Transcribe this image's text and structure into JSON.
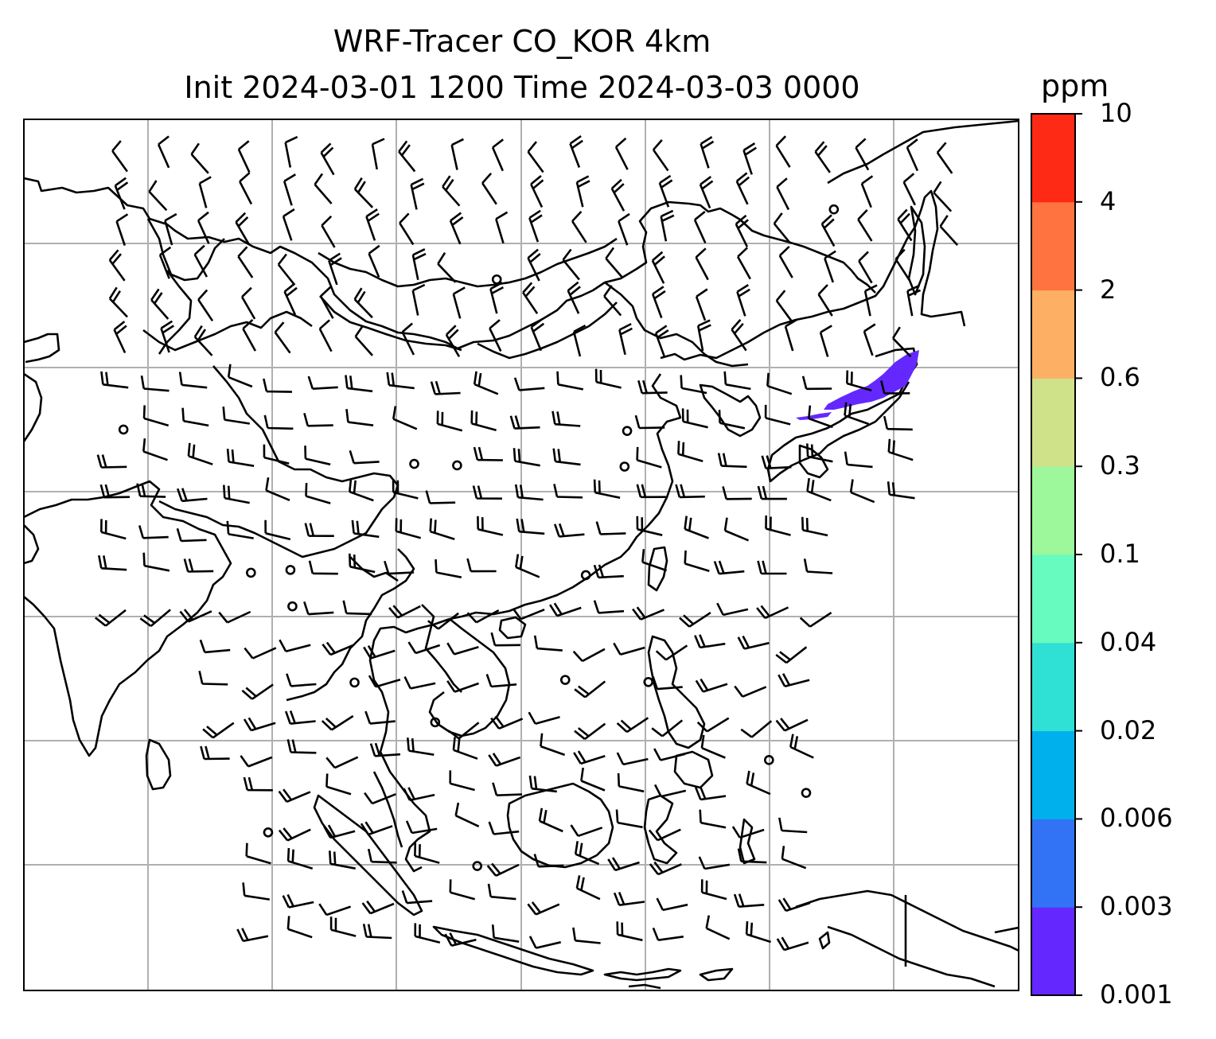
{
  "title": {
    "line1": "WRF-Tracer CO_KOR 4km",
    "line2": "Init 2024-03-01 1200 Time 2024-03-03 0000"
  },
  "colorbar": {
    "units": "ppm",
    "levels": [
      "0.001",
      "0.003",
      "0.006",
      "0.02",
      "0.04",
      "0.1",
      "0.3",
      "0.6",
      "2",
      "4",
      "10"
    ],
    "colors": [
      "#6428ff",
      "#3273f5",
      "#00b0ec",
      "#2fe0d4",
      "#67fbbf",
      "#9cf89a",
      "#cfe28a",
      "#fdb064",
      "#ff7340",
      "#ff2a15"
    ]
  },
  "map": {
    "frame_color": "#000000",
    "grid_color": "#b0b0b0",
    "land_outline_color": "#000000",
    "wind_barb_color": "#000000",
    "plume_color": "#6428ff"
  }
}
